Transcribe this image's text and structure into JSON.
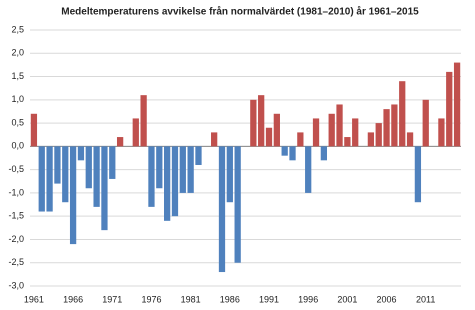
{
  "chart_data": {
    "type": "bar",
    "title": "Medeltemperaturens avvikelse från normalvärdet (1981–2010) år 1961–2015",
    "categories": [
      "1961",
      null,
      null,
      null,
      null,
      "1966",
      null,
      null,
      null,
      null,
      "1971",
      null,
      null,
      null,
      null,
      "1976",
      null,
      null,
      null,
      null,
      "1981",
      null,
      null,
      null,
      null,
      "1986",
      null,
      null,
      null,
      null,
      "1991",
      null,
      null,
      null,
      null,
      "1996",
      null,
      null,
      null,
      null,
      "2001",
      null,
      null,
      null,
      null,
      "2006",
      null,
      null,
      null,
      null,
      "2011",
      null,
      null,
      null,
      null
    ],
    "values": [
      0.7,
      -1.4,
      -1.4,
      -0.8,
      -1.2,
      -2.1,
      -0.3,
      -0.9,
      -1.3,
      -1.8,
      -0.7,
      0.2,
      0.0,
      0.6,
      1.1,
      -1.3,
      -0.9,
      -1.6,
      -1.5,
      -1.0,
      -1.0,
      -0.4,
      0.0,
      0.3,
      -2.7,
      -1.2,
      -2.5,
      0.0,
      1.0,
      1.1,
      0.4,
      0.7,
      -0.2,
      -0.3,
      0.3,
      -1.0,
      0.6,
      -0.3,
      0.7,
      0.9,
      0.2,
      0.6,
      0.0,
      0.3,
      0.5,
      0.8,
      0.9,
      1.4,
      0.3,
      -1.2,
      1.0,
      0.0,
      0.6,
      1.6,
      1.8
    ],
    "positive_color": "#c0504d",
    "negative_color": "#4f81bd",
    "ylim": [
      -3.0,
      2.5
    ],
    "yticks": [
      {
        "value": -3.0,
        "label": "-3,0"
      },
      {
        "value": -2.5,
        "label": "-2,5"
      },
      {
        "value": -2.0,
        "label": "-2,0"
      },
      {
        "value": -1.5,
        "label": "-1,5"
      },
      {
        "value": -1.0,
        "label": "-1,0"
      },
      {
        "value": -0.5,
        "label": "-0,5"
      },
      {
        "value": 0.0,
        "label": "0,0"
      },
      {
        "value": 0.5,
        "label": "0,5"
      },
      {
        "value": 1.0,
        "label": "1,0"
      },
      {
        "value": 1.5,
        "label": "1,5"
      },
      {
        "value": 2.0,
        "label": "2,0"
      },
      {
        "value": 2.5,
        "label": "2,5"
      }
    ],
    "grid": true
  }
}
